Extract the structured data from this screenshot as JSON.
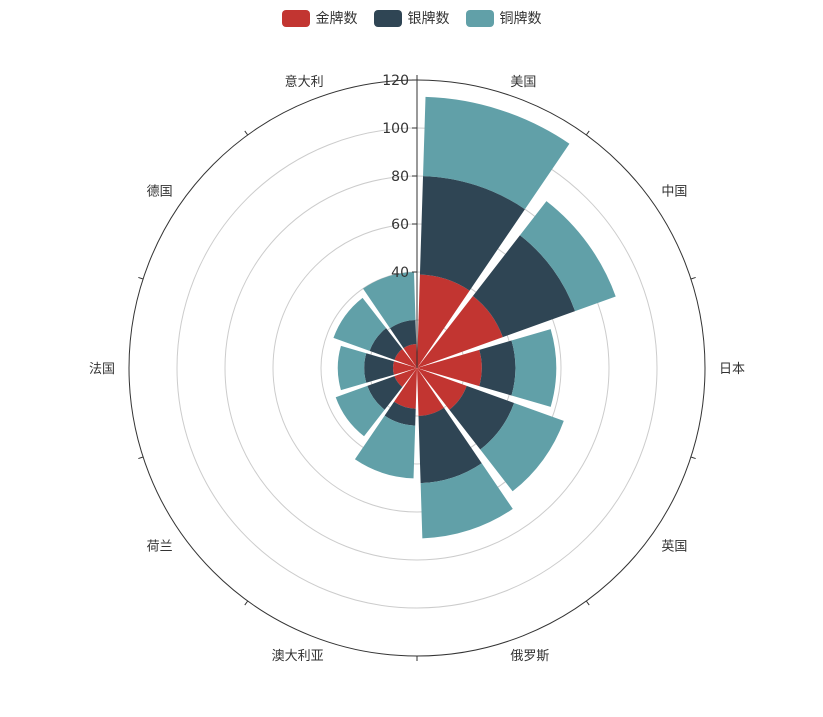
{
  "legend": [
    {
      "label": "金牌数",
      "color": "#c23531"
    },
    {
      "label": "银牌数",
      "color": "#2f4554"
    },
    {
      "label": "铜牌数",
      "color": "#61a0a8"
    }
  ],
  "chart_data": {
    "type": "bar",
    "coordinate": "polar",
    "stacked": true,
    "categories": [
      "美国",
      "中国",
      "日本",
      "英国",
      "俄罗斯",
      "澳大利亚",
      "荷兰",
      "法国",
      "德国",
      "意大利"
    ],
    "series": [
      {
        "name": "金牌数",
        "color": "#c23531",
        "values": [
          39,
          38,
          27,
          22,
          20,
          17,
          10,
          10,
          10,
          10
        ]
      },
      {
        "name": "银牌数",
        "color": "#2f4554",
        "values": [
          41,
          32,
          14,
          21,
          28,
          7,
          12,
          12,
          11,
          10
        ]
      },
      {
        "name": "铜牌数",
        "color": "#61a0a8",
        "values": [
          33,
          18,
          17,
          22,
          23,
          22,
          14,
          11,
          16,
          20
        ]
      }
    ],
    "radius_ticks": [
      40,
      60,
      80,
      100,
      120
    ],
    "radius_range": [
      0,
      120
    ],
    "legend_position": "top-center",
    "grid": true
  }
}
